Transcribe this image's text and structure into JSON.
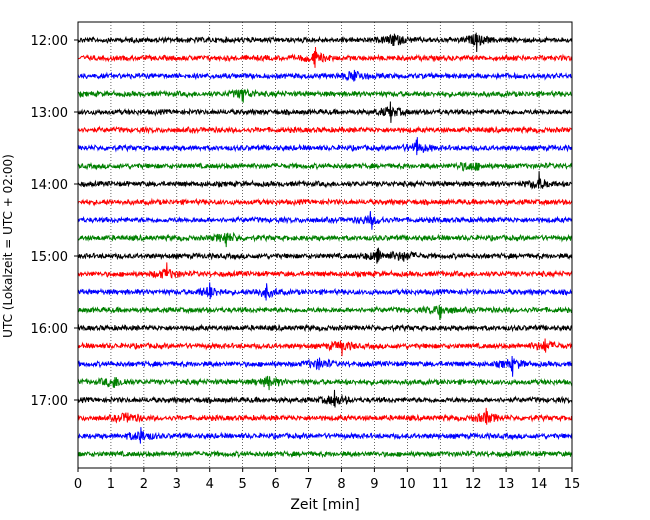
{
  "chart_data": {
    "type": "line",
    "title": "",
    "xlabel": "Zeit  [min]",
    "ylabel": "UTC (Lokalzeit = UTC + 02:00)",
    "xlim": [
      0,
      15
    ],
    "x_ticks": [
      "0",
      "1",
      "2",
      "3",
      "4",
      "5",
      "6",
      "7",
      "8",
      "9",
      "10",
      "11",
      "12",
      "13",
      "14",
      "15"
    ],
    "y_tick_labels": [
      "12:00",
      "13:00",
      "14:00",
      "15:00",
      "16:00",
      "17:00"
    ],
    "grid": "vertical dotted at each minute",
    "legend": "none",
    "row_interval_minutes": 15,
    "color_cycle": [
      "#000000",
      "#ff0000",
      "#0000ff",
      "#008000"
    ],
    "traces": [
      {
        "start": "12:00",
        "color": "#000000",
        "events": [
          9.6,
          12.1
        ]
      },
      {
        "start": "12:15",
        "color": "#ff0000",
        "events": [
          7.2
        ]
      },
      {
        "start": "12:30",
        "color": "#0000ff",
        "events": [
          8.4
        ]
      },
      {
        "start": "12:45",
        "color": "#008000",
        "events": [
          5.0
        ]
      },
      {
        "start": "13:00",
        "color": "#000000",
        "events": [
          9.5
        ]
      },
      {
        "start": "13:15",
        "color": "#ff0000",
        "events": []
      },
      {
        "start": "13:30",
        "color": "#0000ff",
        "events": [
          10.3
        ]
      },
      {
        "start": "13:45",
        "color": "#008000",
        "events": [
          11.9
        ]
      },
      {
        "start": "14:00",
        "color": "#000000",
        "events": [
          14.0
        ]
      },
      {
        "start": "14:15",
        "color": "#ff0000",
        "events": []
      },
      {
        "start": "14:30",
        "color": "#0000ff",
        "events": [
          8.9
        ]
      },
      {
        "start": "14:45",
        "color": "#008000",
        "events": [
          4.5
        ]
      },
      {
        "start": "15:00",
        "color": "#000000",
        "events": [
          9.1,
          9.9
        ]
      },
      {
        "start": "15:15",
        "color": "#ff0000",
        "events": [
          2.7
        ]
      },
      {
        "start": "15:30",
        "color": "#0000ff",
        "events": [
          4.0,
          5.7
        ]
      },
      {
        "start": "15:45",
        "color": "#008000",
        "events": [
          11.0
        ]
      },
      {
        "start": "16:00",
        "color": "#000000",
        "events": []
      },
      {
        "start": "16:15",
        "color": "#ff0000",
        "events": [
          8.0,
          14.2
        ]
      },
      {
        "start": "16:30",
        "color": "#0000ff",
        "events": [
          7.3,
          13.2
        ]
      },
      {
        "start": "16:45",
        "color": "#008000",
        "events": [
          1.1,
          5.8
        ]
      },
      {
        "start": "17:00",
        "color": "#000000",
        "events": [
          7.8
        ]
      },
      {
        "start": "17:15",
        "color": "#ff0000",
        "events": [
          1.5,
          12.4
        ]
      },
      {
        "start": "17:30",
        "color": "#0000ff",
        "events": [
          1.9
        ]
      },
      {
        "start": "17:45",
        "color": "#008000",
        "events": []
      }
    ]
  }
}
